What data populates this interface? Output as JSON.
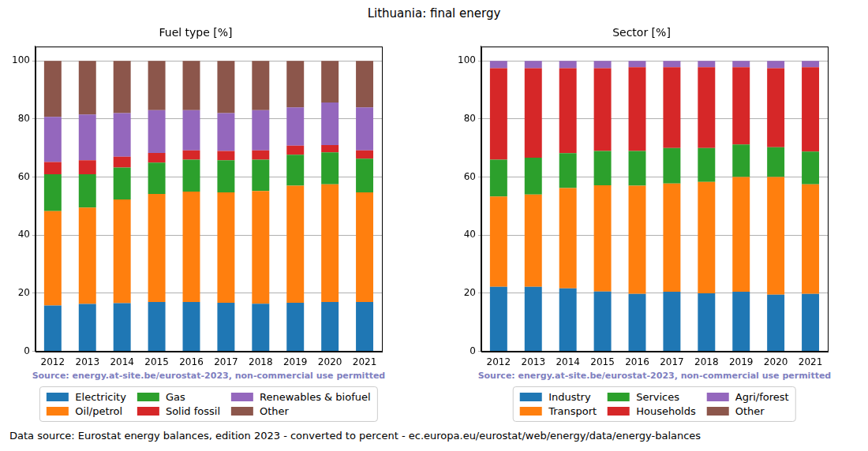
{
  "suptitle": "Lithuania: final energy",
  "caption": "Data source: Eurostat energy balances, edition 2023 - converted to percent - ec.europa.eu/eurostat/web/energy/data/energy-balances",
  "chart_data": [
    {
      "type": "bar",
      "stacked": true,
      "title": "Fuel type [%]",
      "annotation": "Source: energy.at-site.be/eurostat-2023, non-commercial use permitted",
      "categories": [
        "2012",
        "2013",
        "2014",
        "2015",
        "2016",
        "2017",
        "2018",
        "2019",
        "2020",
        "2021"
      ],
      "ylim": [
        0,
        105
      ],
      "yticks": [
        0,
        20,
        40,
        60,
        80,
        100
      ],
      "grid": true,
      "legend": "bottom",
      "series": [
        {
          "name": "Electricity",
          "color": "#1f77b4",
          "values": [
            15.8,
            16.3,
            16.6,
            17.0,
            17.0,
            16.7,
            16.4,
            16.7,
            17.0,
            17.0
          ]
        },
        {
          "name": "Oil/petrol",
          "color": "#ff7f0e",
          "values": [
            32.5,
            33.2,
            35.7,
            37.2,
            38.0,
            38.0,
            38.8,
            40.3,
            40.5,
            37.7
          ]
        },
        {
          "name": "Gas",
          "color": "#2ca02c",
          "values": [
            12.7,
            11.5,
            11.0,
            10.8,
            11.0,
            11.1,
            10.8,
            10.7,
            11.0,
            11.6
          ]
        },
        {
          "name": "Solid fossil",
          "color": "#d62728",
          "values": [
            4.2,
            4.8,
            3.7,
            3.3,
            3.2,
            3.2,
            3.2,
            3.1,
            2.5,
            2.9
          ]
        },
        {
          "name": "Renewables & biofuel",
          "color": "#9467bd",
          "values": [
            15.5,
            15.7,
            15.0,
            14.7,
            13.8,
            13.0,
            13.8,
            13.2,
            14.7,
            14.8
          ]
        },
        {
          "name": "Other",
          "color": "#8c564b",
          "values": [
            19.3,
            18.5,
            18.0,
            17.0,
            17.0,
            18.0,
            17.0,
            16.0,
            14.3,
            16.0
          ]
        }
      ]
    },
    {
      "type": "bar",
      "stacked": true,
      "title": "Sector [%]",
      "annotation": "Source: energy.at-site.be/eurostat-2023, non-commercial use permitted",
      "categories": [
        "2012",
        "2013",
        "2014",
        "2015",
        "2016",
        "2017",
        "2018",
        "2019",
        "2020",
        "2021"
      ],
      "ylim": [
        0,
        105
      ],
      "yticks": [
        0,
        20,
        40,
        60,
        80,
        100
      ],
      "grid": true,
      "legend": "bottom",
      "series": [
        {
          "name": "Industry",
          "color": "#1f77b4",
          "values": [
            22.2,
            22.2,
            21.7,
            20.6,
            19.8,
            20.5,
            20.0,
            20.5,
            19.5,
            19.8
          ]
        },
        {
          "name": "Transport",
          "color": "#ff7f0e",
          "values": [
            31.1,
            31.8,
            34.5,
            36.6,
            37.2,
            37.3,
            38.3,
            39.5,
            40.5,
            37.7
          ]
        },
        {
          "name": "Services",
          "color": "#2ca02c",
          "values": [
            12.7,
            12.7,
            12.0,
            11.8,
            12.0,
            12.2,
            11.7,
            11.2,
            10.3,
            11.3
          ]
        },
        {
          "name": "Households",
          "color": "#d62728",
          "values": [
            31.5,
            30.8,
            29.3,
            28.5,
            28.8,
            27.8,
            27.8,
            26.6,
            27.2,
            29.0
          ]
        },
        {
          "name": "Agri/forest",
          "color": "#9467bd",
          "values": [
            2.5,
            2.5,
            2.5,
            2.5,
            2.2,
            2.2,
            2.2,
            2.2,
            2.5,
            2.2
          ]
        },
        {
          "name": "Other",
          "color": "#8c564b",
          "values": [
            0,
            0,
            0,
            0,
            0,
            0,
            0,
            0,
            0,
            0
          ]
        }
      ]
    }
  ]
}
